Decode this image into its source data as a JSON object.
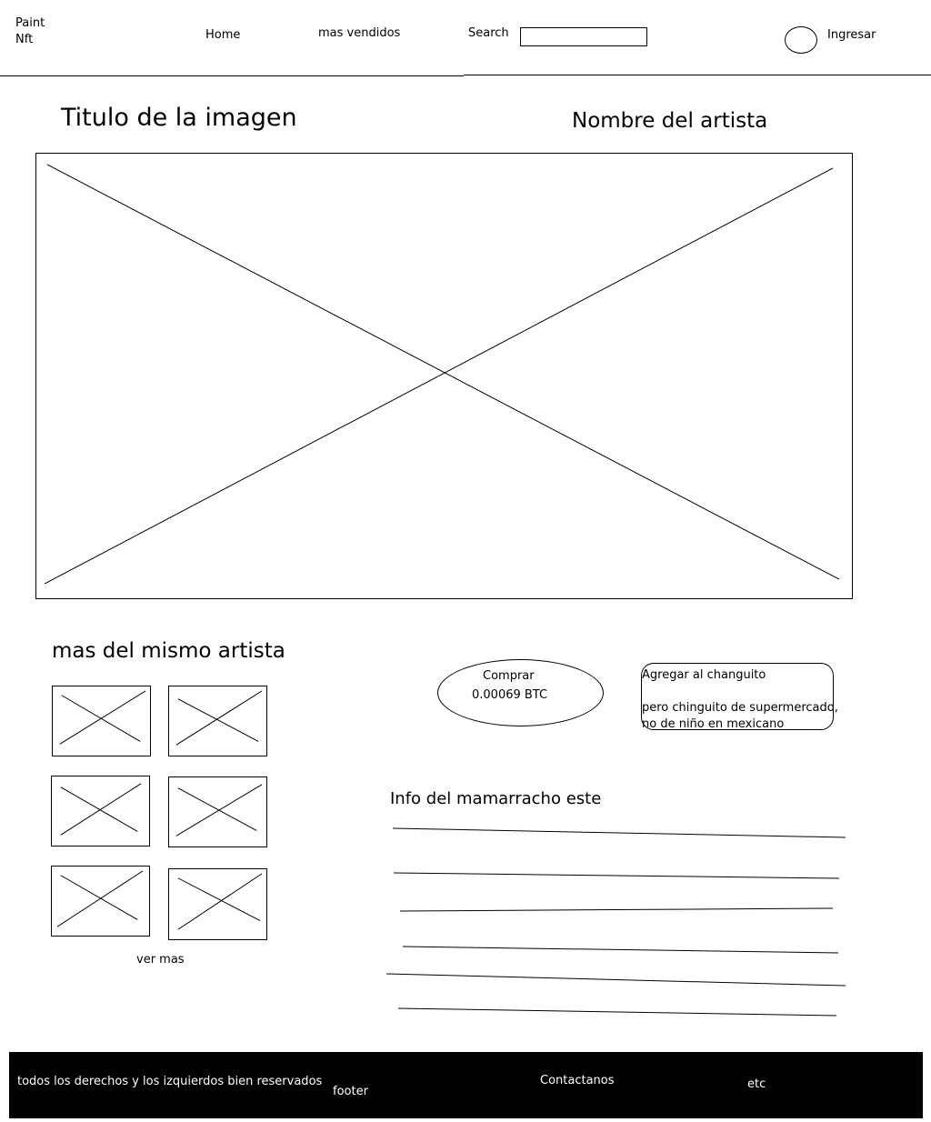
{
  "header": {
    "logo_line1": "Paint",
    "logo_line2": "Nft",
    "nav_home": "Home",
    "nav_best_sellers": "mas vendidos",
    "search_label": "Search",
    "search_value": "",
    "login_label": "Ingresar"
  },
  "main": {
    "image_title": "Titulo de la imagen",
    "artist_name": "Nombre del artista",
    "main_image_icon": "image-placeholder-icon"
  },
  "more_by_artist": {
    "heading": "mas del mismo artista",
    "thumbnail_icon": "image-placeholder-icon",
    "see_more": "ver mas"
  },
  "purchase": {
    "buy_label": "Comprar",
    "price": "0.00069 BTC",
    "cart_label": "Agregar al changuito",
    "cart_note_line1": "pero chinguito de supermercado,",
    "cart_note_line2": "no de niño en mexicano"
  },
  "info": {
    "heading": "Info del mamarracho este"
  },
  "footer": {
    "rights": "todos los derechos y los izquierdos bien reservados",
    "footer_label": "footer",
    "contact": "Contactanos",
    "etc": "etc"
  },
  "colors": {
    "background": "#ffffff",
    "ink": "#000000",
    "footer_background": "#000000",
    "footer_text": "#ffffff"
  }
}
